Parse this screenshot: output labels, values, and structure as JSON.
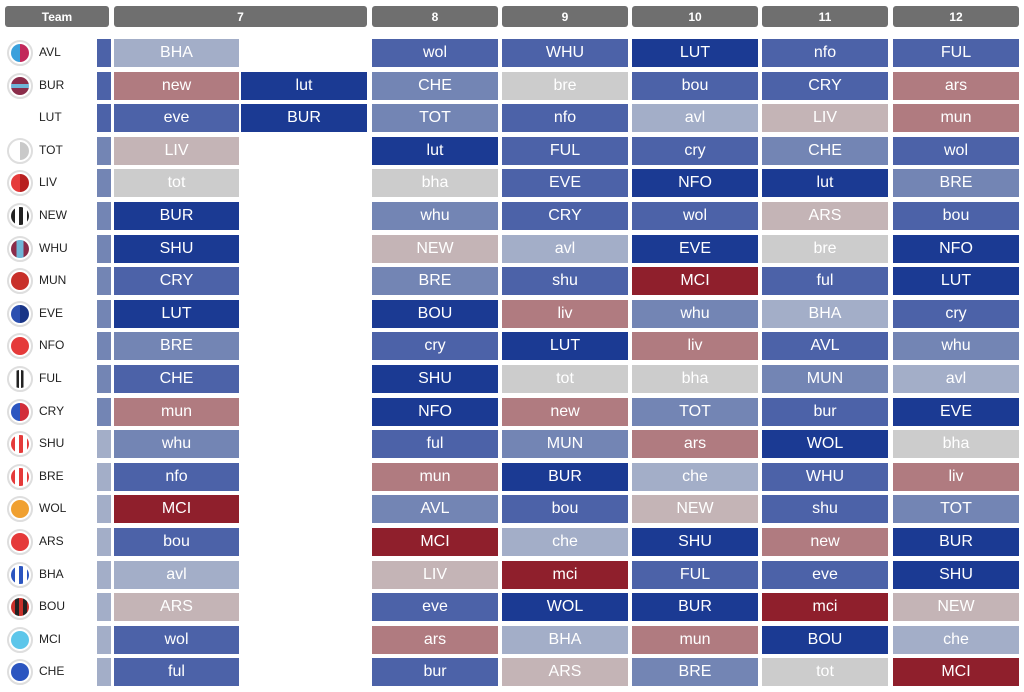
{
  "header": {
    "team_label": "Team",
    "gameweeks": [
      "7",
      "8",
      "9",
      "10",
      "11",
      "12"
    ]
  },
  "colors": {
    "fdr_1": "#1b3a93",
    "fdr_2": "#4c62a8",
    "fdr_3": "#7385b4",
    "fdr_4": "#a3aec8",
    "fdr_5": "#cccccc",
    "fdr_6": "#c4b4b6",
    "fdr_7": "#b07b80",
    "fdr_8": "#8f1f2c",
    "header_bg": "#6f6f6f"
  },
  "teams": [
    {
      "code": "AVL",
      "badge": "avl-badge-icon",
      "strip": 2,
      "gw7": [
        {
          "text": "BHA",
          "fdr": 4
        }
      ],
      "gw8": {
        "text": "wol",
        "fdr": 2
      },
      "gw9": {
        "text": "WHU",
        "fdr": 2
      },
      "gw10": {
        "text": "LUT",
        "fdr": 1
      },
      "gw11": {
        "text": "nfo",
        "fdr": 2
      },
      "gw12": {
        "text": "FUL",
        "fdr": 2
      }
    },
    {
      "code": "BUR",
      "badge": "bur-badge-icon",
      "strip": 2,
      "gw7": [
        {
          "text": "new",
          "fdr": 7
        },
        {
          "text": "lut",
          "fdr": 1
        }
      ],
      "gw8": {
        "text": "CHE",
        "fdr": 3
      },
      "gw9": {
        "text": "bre",
        "fdr": 5
      },
      "gw10": {
        "text": "bou",
        "fdr": 2
      },
      "gw11": {
        "text": "CRY",
        "fdr": 2
      },
      "gw12": {
        "text": "ars",
        "fdr": 7
      }
    },
    {
      "code": "LUT",
      "badge": "",
      "strip": 2,
      "gw7": [
        {
          "text": "eve",
          "fdr": 2
        },
        {
          "text": "BUR",
          "fdr": 1
        }
      ],
      "gw8": {
        "text": "TOT",
        "fdr": 3
      },
      "gw9": {
        "text": "nfo",
        "fdr": 2
      },
      "gw10": {
        "text": "avl",
        "fdr": 4
      },
      "gw11": {
        "text": "LIV",
        "fdr": 6
      },
      "gw12": {
        "text": "mun",
        "fdr": 7
      }
    },
    {
      "code": "TOT",
      "badge": "tot-badge-icon",
      "strip": 3,
      "gw7": [
        {
          "text": "LIV",
          "fdr": 6
        }
      ],
      "gw8": {
        "text": "lut",
        "fdr": 1
      },
      "gw9": {
        "text": "FUL",
        "fdr": 2
      },
      "gw10": {
        "text": "cry",
        "fdr": 2
      },
      "gw11": {
        "text": "CHE",
        "fdr": 3
      },
      "gw12": {
        "text": "wol",
        "fdr": 2
      }
    },
    {
      "code": "LIV",
      "badge": "liv-badge-icon",
      "strip": 3,
      "gw7": [
        {
          "text": "tot",
          "fdr": 5
        }
      ],
      "gw8": {
        "text": "bha",
        "fdr": 5
      },
      "gw9": {
        "text": "EVE",
        "fdr": 2
      },
      "gw10": {
        "text": "NFO",
        "fdr": 1
      },
      "gw11": {
        "text": "lut",
        "fdr": 1
      },
      "gw12": {
        "text": "BRE",
        "fdr": 3
      }
    },
    {
      "code": "NEW",
      "badge": "new-badge-icon",
      "strip": 3,
      "gw7": [
        {
          "text": "BUR",
          "fdr": 1
        }
      ],
      "gw8": {
        "text": "whu",
        "fdr": 3
      },
      "gw9": {
        "text": "CRY",
        "fdr": 2
      },
      "gw10": {
        "text": "wol",
        "fdr": 2
      },
      "gw11": {
        "text": "ARS",
        "fdr": 6
      },
      "gw12": {
        "text": "bou",
        "fdr": 2
      }
    },
    {
      "code": "WHU",
      "badge": "whu-badge-icon",
      "strip": 3,
      "gw7": [
        {
          "text": "SHU",
          "fdr": 1
        }
      ],
      "gw8": {
        "text": "NEW",
        "fdr": 6
      },
      "gw9": {
        "text": "avl",
        "fdr": 4
      },
      "gw10": {
        "text": "EVE",
        "fdr": 1
      },
      "gw11": {
        "text": "bre",
        "fdr": 5
      },
      "gw12": {
        "text": "NFO",
        "fdr": 1
      }
    },
    {
      "code": "MUN",
      "badge": "mun-badge-icon",
      "strip": 3,
      "gw7": [
        {
          "text": "CRY",
          "fdr": 2
        }
      ],
      "gw8": {
        "text": "BRE",
        "fdr": 3
      },
      "gw9": {
        "text": "shu",
        "fdr": 2
      },
      "gw10": {
        "text": "MCI",
        "fdr": 8
      },
      "gw11": {
        "text": "ful",
        "fdr": 2
      },
      "gw12": {
        "text": "LUT",
        "fdr": 1
      }
    },
    {
      "code": "EVE",
      "badge": "eve-badge-icon",
      "strip": 3,
      "gw7": [
        {
          "text": "LUT",
          "fdr": 1
        }
      ],
      "gw8": {
        "text": "BOU",
        "fdr": 1
      },
      "gw9": {
        "text": "liv",
        "fdr": 7
      },
      "gw10": {
        "text": "whu",
        "fdr": 3
      },
      "gw11": {
        "text": "BHA",
        "fdr": 4
      },
      "gw12": {
        "text": "cry",
        "fdr": 2
      }
    },
    {
      "code": "NFO",
      "badge": "nfo-badge-icon",
      "strip": 3,
      "gw7": [
        {
          "text": "BRE",
          "fdr": 3
        }
      ],
      "gw8": {
        "text": "cry",
        "fdr": 2
      },
      "gw9": {
        "text": "LUT",
        "fdr": 1
      },
      "gw10": {
        "text": "liv",
        "fdr": 7
      },
      "gw11": {
        "text": "AVL",
        "fdr": 2
      },
      "gw12": {
        "text": "whu",
        "fdr": 3
      }
    },
    {
      "code": "FUL",
      "badge": "ful-badge-icon",
      "strip": 3,
      "gw7": [
        {
          "text": "CHE",
          "fdr": 2
        }
      ],
      "gw8": {
        "text": "SHU",
        "fdr": 1
      },
      "gw9": {
        "text": "tot",
        "fdr": 5
      },
      "gw10": {
        "text": "bha",
        "fdr": 5
      },
      "gw11": {
        "text": "MUN",
        "fdr": 3
      },
      "gw12": {
        "text": "avl",
        "fdr": 4
      }
    },
    {
      "code": "CRY",
      "badge": "cry-badge-icon",
      "strip": 3,
      "gw7": [
        {
          "text": "mun",
          "fdr": 7
        }
      ],
      "gw8": {
        "text": "NFO",
        "fdr": 1
      },
      "gw9": {
        "text": "new",
        "fdr": 7
      },
      "gw10": {
        "text": "TOT",
        "fdr": 3
      },
      "gw11": {
        "text": "bur",
        "fdr": 2
      },
      "gw12": {
        "text": "EVE",
        "fdr": 1
      }
    },
    {
      "code": "SHU",
      "badge": "shu-badge-icon",
      "strip": 4,
      "gw7": [
        {
          "text": "whu",
          "fdr": 3
        }
      ],
      "gw8": {
        "text": "ful",
        "fdr": 2
      },
      "gw9": {
        "text": "MUN",
        "fdr": 3
      },
      "gw10": {
        "text": "ars",
        "fdr": 7
      },
      "gw11": {
        "text": "WOL",
        "fdr": 1
      },
      "gw12": {
        "text": "bha",
        "fdr": 5
      }
    },
    {
      "code": "BRE",
      "badge": "bre-badge-icon",
      "strip": 4,
      "gw7": [
        {
          "text": "nfo",
          "fdr": 2
        }
      ],
      "gw8": {
        "text": "mun",
        "fdr": 7
      },
      "gw9": {
        "text": "BUR",
        "fdr": 1
      },
      "gw10": {
        "text": "che",
        "fdr": 4
      },
      "gw11": {
        "text": "WHU",
        "fdr": 2
      },
      "gw12": {
        "text": "liv",
        "fdr": 7
      }
    },
    {
      "code": "WOL",
      "badge": "wol-badge-icon",
      "strip": 4,
      "gw7": [
        {
          "text": "MCI",
          "fdr": 8
        }
      ],
      "gw8": {
        "text": "AVL",
        "fdr": 3
      },
      "gw9": {
        "text": "bou",
        "fdr": 2
      },
      "gw10": {
        "text": "NEW",
        "fdr": 6
      },
      "gw11": {
        "text": "shu",
        "fdr": 2
      },
      "gw12": {
        "text": "TOT",
        "fdr": 3
      }
    },
    {
      "code": "ARS",
      "badge": "ars-badge-icon",
      "strip": 4,
      "gw7": [
        {
          "text": "bou",
          "fdr": 2
        }
      ],
      "gw8": {
        "text": "MCI",
        "fdr": 8
      },
      "gw9": {
        "text": "che",
        "fdr": 4
      },
      "gw10": {
        "text": "SHU",
        "fdr": 1
      },
      "gw11": {
        "text": "new",
        "fdr": 7
      },
      "gw12": {
        "text": "BUR",
        "fdr": 1
      }
    },
    {
      "code": "BHA",
      "badge": "bha-badge-icon",
      "strip": 4,
      "gw7": [
        {
          "text": "avl",
          "fdr": 4
        }
      ],
      "gw8": {
        "text": "LIV",
        "fdr": 6
      },
      "gw9": {
        "text": "mci",
        "fdr": 8
      },
      "gw10": {
        "text": "FUL",
        "fdr": 2
      },
      "gw11": {
        "text": "eve",
        "fdr": 2
      },
      "gw12": {
        "text": "SHU",
        "fdr": 1
      }
    },
    {
      "code": "BOU",
      "badge": "bou-badge-icon",
      "strip": 4,
      "gw7": [
        {
          "text": "ARS",
          "fdr": 6
        }
      ],
      "gw8": {
        "text": "eve",
        "fdr": 2
      },
      "gw9": {
        "text": "WOL",
        "fdr": 1
      },
      "gw10": {
        "text": "BUR",
        "fdr": 1
      },
      "gw11": {
        "text": "mci",
        "fdr": 8
      },
      "gw12": {
        "text": "NEW",
        "fdr": 6
      }
    },
    {
      "code": "MCI",
      "badge": "mci-badge-icon",
      "strip": 4,
      "gw7": [
        {
          "text": "wol",
          "fdr": 2
        }
      ],
      "gw8": {
        "text": "ars",
        "fdr": 7
      },
      "gw9": {
        "text": "BHA",
        "fdr": 4
      },
      "gw10": {
        "text": "mun",
        "fdr": 7
      },
      "gw11": {
        "text": "BOU",
        "fdr": 1
      },
      "gw12": {
        "text": "che",
        "fdr": 4
      }
    },
    {
      "code": "CHE",
      "badge": "che-badge-icon",
      "strip": 4,
      "gw7": [
        {
          "text": "ful",
          "fdr": 2
        }
      ],
      "gw8": {
        "text": "bur",
        "fdr": 2
      },
      "gw9": {
        "text": "ARS",
        "fdr": 6
      },
      "gw10": {
        "text": "BRE",
        "fdr": 3
      },
      "gw11": {
        "text": "tot",
        "fdr": 5
      },
      "gw12": {
        "text": "MCI",
        "fdr": 8
      }
    }
  ]
}
